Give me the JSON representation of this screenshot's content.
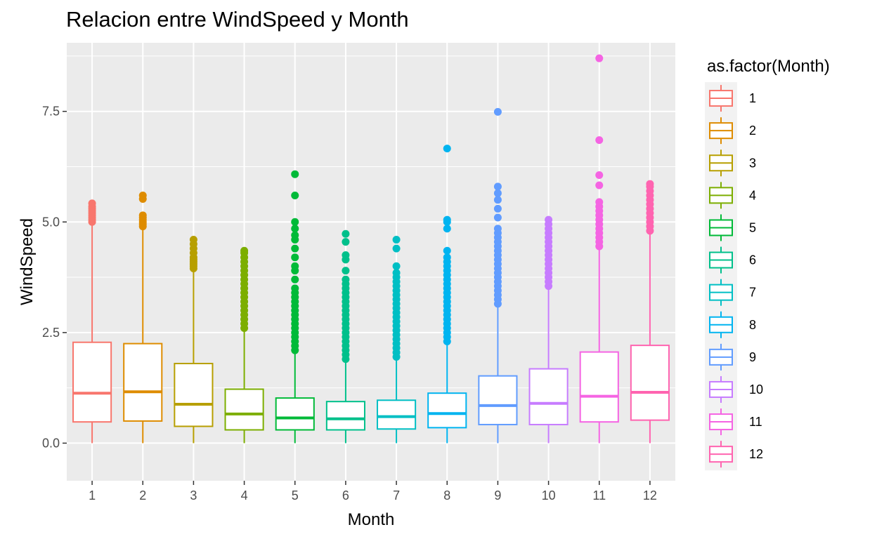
{
  "chart_data": {
    "type": "boxplot",
    "title": "Relacion entre WindSpeed y Month",
    "xlabel": "Month",
    "ylabel": "WindSpeed",
    "ylim": [
      -0.85,
      9.05
    ],
    "yticks": [
      0.0,
      2.5,
      5.0,
      7.5
    ],
    "ytick_labels": [
      "0.0",
      "2.5",
      "5.0",
      "7.5"
    ],
    "grid": true,
    "legend": {
      "title": "as.factor(Month)",
      "position": "right"
    },
    "categories": [
      "1",
      "2",
      "3",
      "4",
      "5",
      "6",
      "7",
      "8",
      "9",
      "10",
      "11",
      "12"
    ],
    "colors": [
      "#F8766D",
      "#DE8C00",
      "#B79F00",
      "#7CAE00",
      "#00BA38",
      "#00C08B",
      "#00BFC4",
      "#00B4F0",
      "#619CFF",
      "#C77CFF",
      "#F564E3",
      "#FF64B0"
    ],
    "series": [
      {
        "name": "1",
        "min": 0.0,
        "q1": 0.48,
        "median": 1.13,
        "q3": 2.28,
        "whisker_high": 4.98,
        "outliers": [
          5.0,
          5.05,
          5.1,
          5.15,
          5.2,
          5.25,
          5.3,
          5.35,
          5.42
        ]
      },
      {
        "name": "2",
        "min": 0.0,
        "q1": 0.5,
        "median": 1.16,
        "q3": 2.25,
        "whisker_high": 4.88,
        "outliers": [
          4.9,
          4.95,
          5.0,
          5.05,
          5.1,
          5.15,
          5.52,
          5.6
        ]
      },
      {
        "name": "3",
        "min": 0.0,
        "q1": 0.38,
        "median": 0.88,
        "q3": 1.8,
        "whisker_high": 3.9,
        "outliers": [
          3.95,
          4.0,
          4.05,
          4.1,
          4.15,
          4.2,
          4.3,
          4.4,
          4.5,
          4.6
        ]
      },
      {
        "name": "4",
        "min": 0.0,
        "q1": 0.3,
        "median": 0.66,
        "q3": 1.22,
        "whisker_high": 2.55,
        "outliers": [
          2.6,
          2.7,
          2.8,
          2.9,
          3.0,
          3.1,
          3.2,
          3.3,
          3.4,
          3.5,
          3.6,
          3.7,
          3.8,
          3.9,
          4.0,
          4.1,
          4.2,
          4.3,
          4.35
        ]
      },
      {
        "name": "5",
        "min": 0.0,
        "q1": 0.3,
        "median": 0.57,
        "q3": 1.02,
        "whisker_high": 2.05,
        "outliers": [
          2.1,
          2.2,
          2.3,
          2.4,
          2.5,
          2.6,
          2.7,
          2.8,
          2.9,
          3.0,
          3.1,
          3.2,
          3.3,
          3.4,
          3.5,
          3.7,
          3.9,
          4.0,
          4.2,
          4.4,
          4.6,
          4.7,
          4.85,
          5.0,
          5.6,
          6.08
        ]
      },
      {
        "name": "6",
        "min": 0.0,
        "q1": 0.3,
        "median": 0.55,
        "q3": 0.94,
        "whisker_high": 1.85,
        "outliers": [
          1.9,
          2.0,
          2.1,
          2.2,
          2.3,
          2.4,
          2.5,
          2.6,
          2.7,
          2.8,
          2.9,
          3.0,
          3.1,
          3.2,
          3.3,
          3.4,
          3.5,
          3.6,
          3.7,
          3.9,
          4.15,
          4.25,
          4.55,
          4.73
        ]
      },
      {
        "name": "7",
        "min": 0.0,
        "q1": 0.32,
        "median": 0.6,
        "q3": 0.97,
        "whisker_high": 1.9,
        "outliers": [
          1.95,
          2.05,
          2.15,
          2.25,
          2.35,
          2.45,
          2.55,
          2.65,
          2.75,
          2.85,
          2.95,
          3.05,
          3.15,
          3.25,
          3.35,
          3.45,
          3.55,
          3.65,
          3.75,
          3.85,
          4.0,
          4.4,
          4.6
        ]
      },
      {
        "name": "8",
        "min": 0.0,
        "q1": 0.35,
        "median": 0.67,
        "q3": 1.13,
        "whisker_high": 2.25,
        "outliers": [
          2.3,
          2.4,
          2.5,
          2.6,
          2.7,
          2.8,
          2.9,
          3.0,
          3.1,
          3.2,
          3.3,
          3.4,
          3.5,
          3.6,
          3.7,
          3.8,
          3.9,
          4.0,
          4.1,
          4.2,
          4.35,
          4.85,
          5.0,
          5.05,
          6.66
        ]
      },
      {
        "name": "9",
        "min": 0.0,
        "q1": 0.42,
        "median": 0.85,
        "q3": 1.52,
        "whisker_high": 3.1,
        "outliers": [
          3.15,
          3.25,
          3.35,
          3.45,
          3.55,
          3.65,
          3.75,
          3.85,
          3.95,
          4.05,
          4.15,
          4.25,
          4.35,
          4.45,
          4.55,
          4.65,
          4.75,
          4.85,
          5.1,
          5.3,
          5.5,
          5.65,
          5.8,
          7.49
        ]
      },
      {
        "name": "10",
        "min": 0.0,
        "q1": 0.42,
        "median": 0.9,
        "q3": 1.68,
        "whisker_high": 3.52,
        "outliers": [
          3.55,
          3.65,
          3.75,
          3.85,
          3.95,
          4.05,
          4.15,
          4.25,
          4.35,
          4.45,
          4.55,
          4.65,
          4.75,
          4.85,
          4.95,
          5.05
        ]
      },
      {
        "name": "11",
        "min": 0.0,
        "q1": 0.48,
        "median": 1.06,
        "q3": 2.06,
        "whisker_high": 4.42,
        "outliers": [
          4.45,
          4.55,
          4.65,
          4.75,
          4.85,
          4.95,
          5.05,
          5.15,
          5.25,
          5.35,
          5.45,
          5.83,
          6.06,
          6.85,
          8.7
        ]
      },
      {
        "name": "12",
        "min": 0.0,
        "q1": 0.52,
        "median": 1.15,
        "q3": 2.21,
        "whisker_high": 4.78,
        "outliers": [
          4.8,
          4.9,
          5.0,
          5.1,
          5.2,
          5.3,
          5.4,
          5.5,
          5.6,
          5.7,
          5.8,
          5.86
        ]
      }
    ]
  }
}
